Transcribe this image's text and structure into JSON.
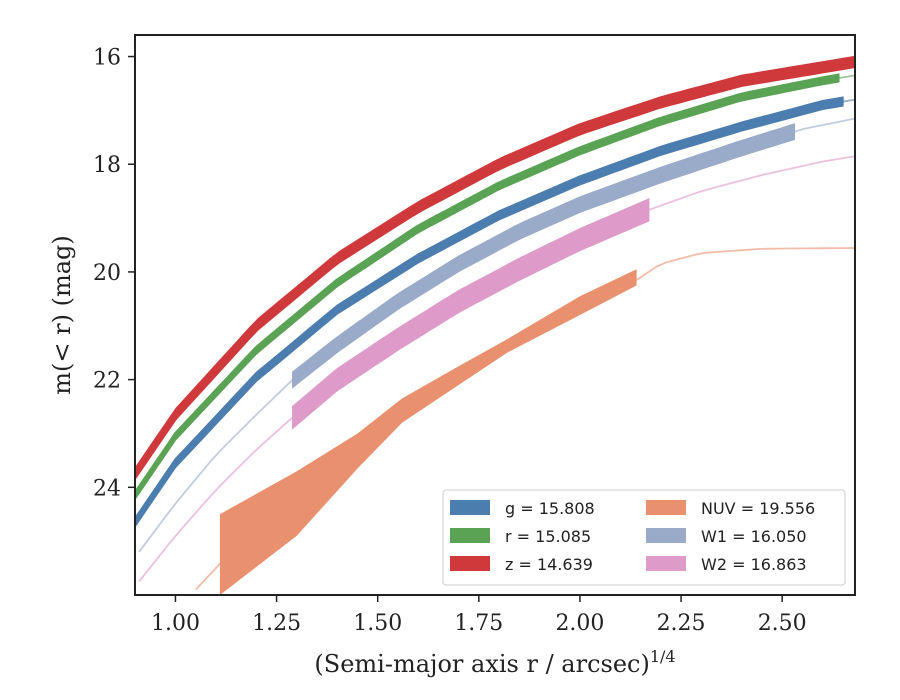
{
  "chart_data": {
    "type": "line",
    "xlabel_main": "(Semi-major axis r / arcsec)",
    "xlabel_sup": "1/4",
    "ylabel": "m(< r) (mag)",
    "xlim": [
      0.9,
      2.68
    ],
    "ylim": [
      26.0,
      15.6
    ],
    "y_inverted": true,
    "x_ticks": [
      1.0,
      1.25,
      1.5,
      1.75,
      2.0,
      2.25,
      2.5
    ],
    "x_tick_labels": [
      "1.00",
      "1.25",
      "1.50",
      "1.75",
      "2.00",
      "2.25",
      "2.50"
    ],
    "y_ticks": [
      16,
      18,
      20,
      22,
      24
    ],
    "y_tick_labels": [
      "16",
      "18",
      "20",
      "22",
      "24"
    ],
    "grid": false,
    "legend_position": "lower-right",
    "series": [
      {
        "name": "g",
        "legend": "g = 15.808",
        "color": "#4C7DAF",
        "x": [
          0.9,
          1.0,
          1.2,
          1.4,
          1.6,
          1.8,
          2.0,
          2.2,
          2.4,
          2.6,
          2.68
        ],
        "y": [
          24.65,
          23.55,
          21.95,
          20.7,
          19.75,
          18.95,
          18.3,
          17.75,
          17.3,
          16.9,
          16.8
        ],
        "solid_x": [
          0.9,
          2.65
        ],
        "halfwidth": 0.08
      },
      {
        "name": "r",
        "legend": "r = 15.085",
        "color": "#5BA354",
        "x": [
          0.9,
          1.0,
          1.2,
          1.4,
          1.6,
          1.8,
          2.0,
          2.2,
          2.4,
          2.6,
          2.68
        ],
        "y": [
          24.15,
          23.05,
          21.45,
          20.2,
          19.2,
          18.4,
          17.75,
          17.2,
          16.75,
          16.45,
          16.35
        ],
        "solid_x": [
          0.9,
          2.64
        ],
        "halfwidth": 0.07
      },
      {
        "name": "z",
        "legend": "z = 14.639",
        "color": "#D0393B",
        "x": [
          0.9,
          1.0,
          1.2,
          1.4,
          1.6,
          1.8,
          2.0,
          2.2,
          2.4,
          2.6,
          2.68
        ],
        "y": [
          23.75,
          22.65,
          21.0,
          19.75,
          18.8,
          18.0,
          17.35,
          16.85,
          16.45,
          16.2,
          16.1
        ],
        "solid_x": [
          0.9,
          2.68
        ],
        "halfwidth": 0.1
      },
      {
        "name": "NUV",
        "legend": "NUV = 19.556",
        "color": "#E9906E",
        "x": [
          1.05,
          1.1,
          1.15,
          1.25,
          1.35,
          1.45,
          1.56,
          1.7,
          1.85,
          2.0,
          2.14,
          2.2,
          2.3,
          2.45,
          2.6,
          2.68
        ],
        "y": [
          25.9,
          25.5,
          25.1,
          24.4,
          23.75,
          23.2,
          22.6,
          21.95,
          21.25,
          20.65,
          20.15,
          19.85,
          19.65,
          19.57,
          19.56,
          19.556
        ],
        "band_x": [
          1.11,
          1.3,
          1.45,
          1.56,
          1.7,
          1.82,
          2.0,
          2.14
        ],
        "band_low": [
          26.0,
          24.9,
          23.65,
          22.8,
          22.1,
          21.5,
          20.8,
          20.25
        ],
        "band_high": [
          24.5,
          23.7,
          23.0,
          22.35,
          21.75,
          21.25,
          20.45,
          19.95
        ]
      },
      {
        "name": "W1",
        "legend": "W1 = 16.050",
        "color": "#9AAAC9",
        "x": [
          0.91,
          1.0,
          1.1,
          1.2,
          1.29,
          1.4,
          1.55,
          1.7,
          1.85,
          2.0,
          2.2,
          2.4,
          2.55,
          2.68
        ],
        "y": [
          25.2,
          24.3,
          23.4,
          22.65,
          22.0,
          21.35,
          20.55,
          19.85,
          19.25,
          18.75,
          18.2,
          17.7,
          17.35,
          17.15
        ],
        "solid_x": [
          1.29,
          2.53
        ],
        "halfwidth": 0.14
      },
      {
        "name": "W2",
        "legend": "W2 = 16.863",
        "color": "#DE9AC8",
        "x": [
          0.91,
          1.0,
          1.1,
          1.2,
          1.29,
          1.4,
          1.55,
          1.7,
          1.85,
          2.0,
          2.17,
          2.3,
          2.45,
          2.6,
          2.68
        ],
        "y": [
          25.75,
          24.9,
          24.05,
          23.3,
          22.7,
          22.0,
          21.25,
          20.55,
          19.95,
          19.4,
          18.85,
          18.5,
          18.2,
          17.95,
          17.85
        ],
        "solid_x": [
          1.29,
          2.17
        ],
        "halfwidth": 0.2
      }
    ]
  }
}
